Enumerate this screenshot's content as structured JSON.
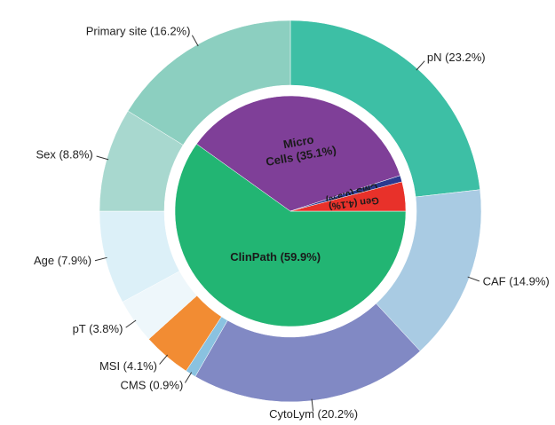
{
  "chart_data": {
    "type": "sunburst",
    "inner": {
      "labels": [
        "ClinPath (59.9%)",
        [
          "Micro",
          "Cells (35.1%)"
        ],
        "CMS (0.9%)",
        "Gen (4.1%)"
      ],
      "values": [
        59.9,
        35.1,
        0.9,
        4.1
      ],
      "colors": [
        "#22b573",
        "#7f3f98",
        "#2b3990",
        "#e8312a"
      ]
    },
    "outer": {
      "labels": [
        "pN (23.2%)",
        "CAF (14.9%)",
        "CytoLym (20.2%)",
        "CMS (0.9%)",
        "MSI (4.1%)",
        "pT (3.8%)",
        "Age (7.9%)",
        "Sex (8.8%)",
        "Primary site (16.2%)"
      ],
      "values": [
        23.2,
        14.9,
        20.2,
        0.9,
        4.1,
        3.8,
        7.9,
        8.8,
        16.2
      ],
      "colors": [
        "#3dbfa5",
        "#a9cbe3",
        "#8189c4",
        "#8ac2e0",
        "#f28c33",
        "#eef7fb",
        "#dcf0f8",
        "#a8d8cf",
        "#8ccfc0"
      ]
    }
  }
}
